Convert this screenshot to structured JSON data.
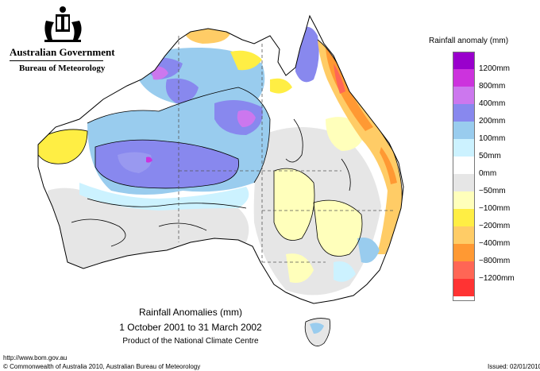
{
  "header": {
    "government": "Australian Government",
    "bureau": "Bureau of Meteorology"
  },
  "legend": {
    "title": "Rainfall anomaly (mm)",
    "items": [
      {
        "label": "1200mm",
        "color": "#9900cc"
      },
      {
        "label": "800mm",
        "color": "#cc33dd"
      },
      {
        "label": "400mm",
        "color": "#cc77ee"
      },
      {
        "label": "200mm",
        "color": "#8888ee"
      },
      {
        "label": "100mm",
        "color": "#99ccee"
      },
      {
        "label": "50mm",
        "color": "#ccf2ff"
      },
      {
        "label": "0mm",
        "color": "#ffffff"
      },
      {
        "label": "−50mm",
        "color": "#e6e6e6"
      },
      {
        "label": "−100mm",
        "color": "#ffffbb"
      },
      {
        "label": "−200mm",
        "color": "#ffee44"
      },
      {
        "label": "−400mm",
        "color": "#ffcc66"
      },
      {
        "label": "−800mm",
        "color": "#ff9933"
      },
      {
        "label": "−1200mm",
        "color": "#ff6655"
      },
      {
        "label": "",
        "color": "#ff3333"
      }
    ]
  },
  "map": {
    "title": "Rainfall Anomalies (mm)",
    "period": "1 October 2001 to 31 March 2002",
    "producer": "Product of the National Climate Centre"
  },
  "footer": {
    "url": "http://www.bom.gov.au",
    "copyright": "© Commonwealth of Australia 2010, Australian Bureau of Meteorology",
    "issued": "Issued: 02/01/2010"
  }
}
